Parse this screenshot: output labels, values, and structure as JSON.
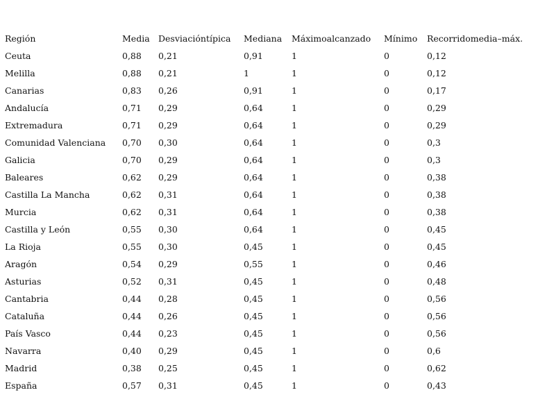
{
  "table": {
    "header": [
      "Región",
      "Media",
      "Desviacióntípica",
      "Mediana",
      "Máximoalcanzado",
      "Mínimo",
      "Recorridomedia–máx."
    ],
    "rows": [
      [
        "Ceuta",
        "0,88",
        "0,21",
        "0,91",
        "1",
        "0",
        "0,12"
      ],
      [
        "Melilla",
        "0,88",
        "0,21",
        "1",
        "1",
        "0",
        "0,12"
      ],
      [
        "Canarias",
        "0,83",
        "0,26",
        "0,91",
        "1",
        "0",
        "0,17"
      ],
      [
        "Andalucía",
        "0,71",
        "0,29",
        "0,64",
        "1",
        "0",
        "0,29"
      ],
      [
        "Extremadura",
        "0,71",
        "0,29",
        "0,64",
        "1",
        "0",
        "0,29"
      ],
      [
        "Comunidad Valenciana",
        "0,70",
        "0,30",
        "0,64",
        "1",
        "0",
        "0,3"
      ],
      [
        "Galicia",
        "0,70",
        "0,29",
        "0,64",
        "1",
        "0",
        "0,3"
      ],
      [
        "Baleares",
        "0,62",
        "0,29",
        "0,64",
        "1",
        "0",
        "0,38"
      ],
      [
        "Castilla La Mancha",
        "0,62",
        "0,31",
        "0,64",
        "1",
        "0",
        "0,38"
      ],
      [
        "Murcia",
        "0,62",
        "0,31",
        "0,64",
        "1",
        "0",
        "0,38"
      ],
      [
        "Castilla y León",
        "0,55",
        "0,30",
        "0,64",
        "1",
        "0",
        "0,45"
      ],
      [
        "La Rioja",
        "0,55",
        "0,30",
        "0,45",
        "1",
        "0",
        "0,45"
      ],
      [
        "Aragón",
        "0,54",
        "0,29",
        "0,55",
        "1",
        "0",
        "0,46"
      ],
      [
        "Asturias",
        "0,52",
        "0,31",
        "0,45",
        "1",
        "0",
        "0,48"
      ],
      [
        "Cantabria",
        "0,44",
        "0,28",
        "0,45",
        "1",
        "0",
        "0,56"
      ],
      [
        "Cataluña",
        "0,44",
        "0,26",
        "0,45",
        "1",
        "0",
        "0,56"
      ],
      [
        "País Vasco",
        "0,44",
        "0,23",
        "0,45",
        "1",
        "0",
        "0,56"
      ],
      [
        "Navarra",
        "0,40",
        "0,29",
        "0,45",
        "1",
        "0",
        "0,6"
      ],
      [
        "Madrid",
        "0,38",
        "0,25",
        "0,45",
        "1",
        "0",
        "0,62"
      ],
      [
        "España",
        "0,57",
        "0,31",
        "0,45",
        "1",
        "0",
        "0,43"
      ]
    ]
  }
}
